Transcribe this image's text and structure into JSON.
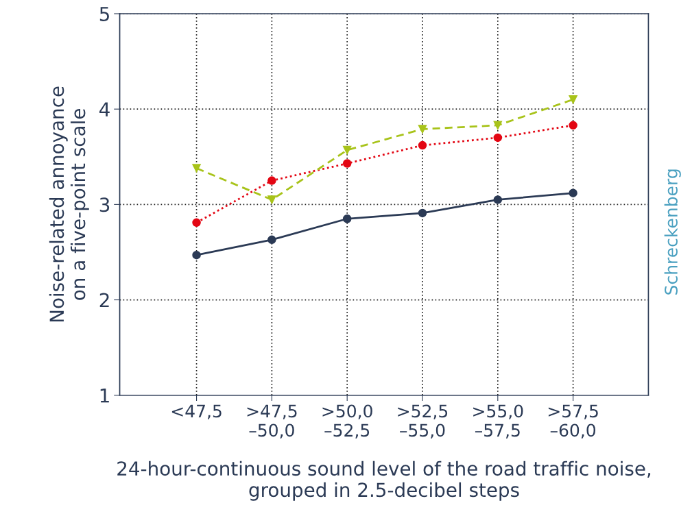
{
  "chart_data": {
    "type": "line",
    "xlabel": "24-hour-continuous sound level of the road traffic noise, grouped in 2.5-decibel steps",
    "ylabel": "Noise-related annoyance\non a five-point scale",
    "categories": [
      "<47,5",
      ">47,5\n–50,0",
      ">50,0\n–52,5",
      ">52,5\n–55,0",
      ">55,0\n–57,5",
      ">57,5\n–60,0"
    ],
    "series": [
      {
        "color": "#2b3a55",
        "marker": "circle",
        "line_style": "solid",
        "values": [
          2.47,
          2.63,
          2.85,
          2.91,
          3.05,
          3.12
        ]
      },
      {
        "color": "#e30613",
        "marker": "circle",
        "line_style": "dotted",
        "values": [
          2.81,
          3.25,
          3.43,
          3.62,
          3.7,
          3.83
        ]
      },
      {
        "color": "#a8c31a",
        "marker": "triangle",
        "line_style": "dashed",
        "values": [
          3.38,
          3.05,
          3.57,
          3.79,
          3.83,
          4.1
        ]
      }
    ],
    "ylim": [
      1,
      5
    ],
    "yticks": [
      1,
      2,
      3,
      4,
      5
    ],
    "grid": true,
    "annotations": [
      "Schreckenberg"
    ]
  }
}
